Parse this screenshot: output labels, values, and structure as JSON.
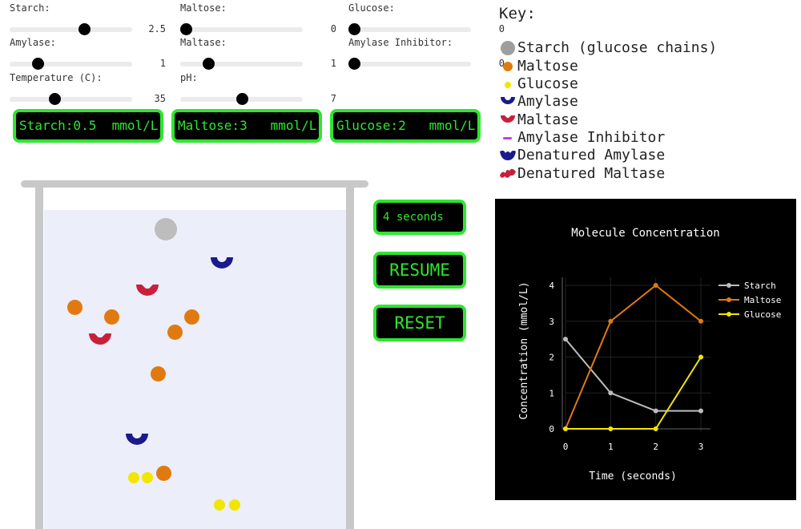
{
  "sliders": [
    {
      "label": "Starch:",
      "value": "2.5",
      "fraction": 0.62
    },
    {
      "label": "Maltose:",
      "value": "0",
      "fraction": 0.0
    },
    {
      "label": "Glucose:",
      "value": "0",
      "fraction": 0.0
    },
    {
      "label": "Amylase:",
      "value": "1",
      "fraction": 0.2
    },
    {
      "label": "Maltase:",
      "value": "1",
      "fraction": 0.2
    },
    {
      "label": "Amylase Inhibitor:",
      "value": "0",
      "fraction": 0.0
    },
    {
      "label": "Temperature (C):",
      "value": "35",
      "fraction": 0.35
    },
    {
      "label": "pH:",
      "value": "7",
      "fraction": 0.5
    }
  ],
  "readouts": [
    {
      "label": "Starch:0.5  mmol/L"
    },
    {
      "label": "Maltose:3   mmol/L"
    },
    {
      "label": "Glucose:2   mmol/L"
    }
  ],
  "timer": {
    "text": "4 seconds"
  },
  "controls": {
    "resume": "RESUME",
    "reset": "RESET"
  },
  "key": {
    "title": "Key:",
    "items": [
      {
        "label": "Starch (glucose chains)",
        "icon": "gray-circle-icon",
        "color": "#9e9e9e"
      },
      {
        "label": "Maltose",
        "icon": "orange-circle-icon",
        "color": "#e07a10"
      },
      {
        "label": "Glucose",
        "icon": "yellow-circle-icon",
        "color": "#f2e600"
      },
      {
        "label": "Amylase",
        "icon": "amylase-cup-icon",
        "color": "#1a1a8c"
      },
      {
        "label": "Maltase",
        "icon": "maltase-cup-icon",
        "color": "#c8203a"
      },
      {
        "label": "Amylase Inhibitor",
        "icon": "inhibitor-dash-icon",
        "color": "#c040e0"
      },
      {
        "label": "Denatured Amylase",
        "icon": "denatured-amylase-icon",
        "color": "#1a1a8c"
      },
      {
        "label": "Denatured Maltase",
        "icon": "denatured-maltase-icon",
        "color": "#c8203a"
      }
    ]
  },
  "colors": {
    "accent_green": "#2ee62e",
    "starch": "#bdbdbd",
    "maltose": "#e07a10",
    "glucose": "#f2e600",
    "amylase": "#1a1a8c",
    "maltase": "#c8203a"
  },
  "chart_data": {
    "type": "line",
    "title": "Molecule Concentration",
    "xlabel": "Time (seconds)",
    "ylabel": "Concentration (mmol/L)",
    "x": [
      0,
      1,
      2,
      3
    ],
    "xlim": [
      0,
      3
    ],
    "ylim": [
      0,
      4
    ],
    "xticks": [
      0,
      1,
      2,
      3
    ],
    "yticks": [
      0,
      1,
      2,
      3,
      4
    ],
    "legend": "top-right",
    "grid": true,
    "series": [
      {
        "name": "Starch",
        "values": [
          2.5,
          1,
          0.5,
          0.5
        ],
        "color": "#bdbdbd"
      },
      {
        "name": "Maltose",
        "values": [
          0,
          3,
          4,
          3
        ],
        "color": "#e07a10"
      },
      {
        "name": "Glucose",
        "values": [
          0,
          0,
          0,
          2
        ],
        "color": "#f2e600"
      }
    ]
  }
}
